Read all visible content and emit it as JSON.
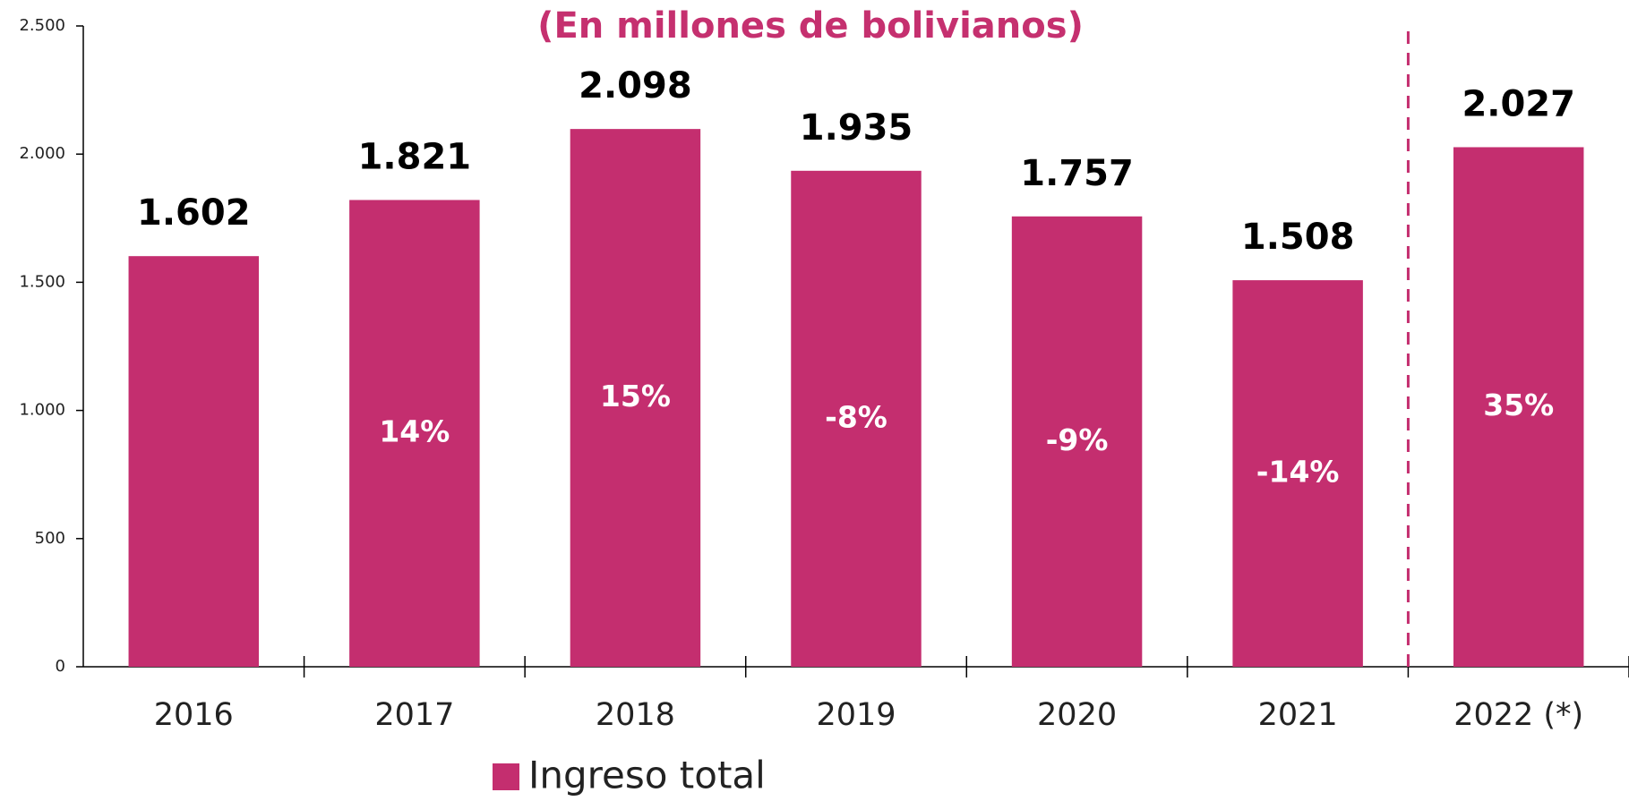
{
  "chart_data": {
    "type": "bar",
    "title": "(En millones de bolivianos)",
    "categories": [
      "2016",
      "2017",
      "2018",
      "2019",
      "2020",
      "2021",
      "2022 (*)"
    ],
    "series": [
      {
        "name": "Ingreso total",
        "color": "#c42e6f",
        "values": [
          1602,
          1821,
          2098,
          1935,
          1757,
          1508,
          2027
        ],
        "value_labels": [
          "1.602",
          "1.821",
          "2.098",
          "1.935",
          "1.757",
          "1.508",
          "2.027"
        ]
      }
    ],
    "growth": {
      "values": [
        null,
        14,
        15,
        -8,
        -9,
        -14,
        35
      ],
      "value_labels": [
        null,
        "14%",
        "15%",
        "-8%",
        "-9%",
        "-14%",
        "35%"
      ]
    },
    "ylim": [
      0,
      2500
    ],
    "yticks": [
      0,
      500,
      {
        "value": 1000,
        "label": "1.000"
      },
      {
        "value": 1500,
        "label": "1.500"
      },
      {
        "value": 2000,
        "label": "2.000"
      },
      {
        "value": 2500,
        "label": "2.500"
      }
    ],
    "grid": false
  }
}
